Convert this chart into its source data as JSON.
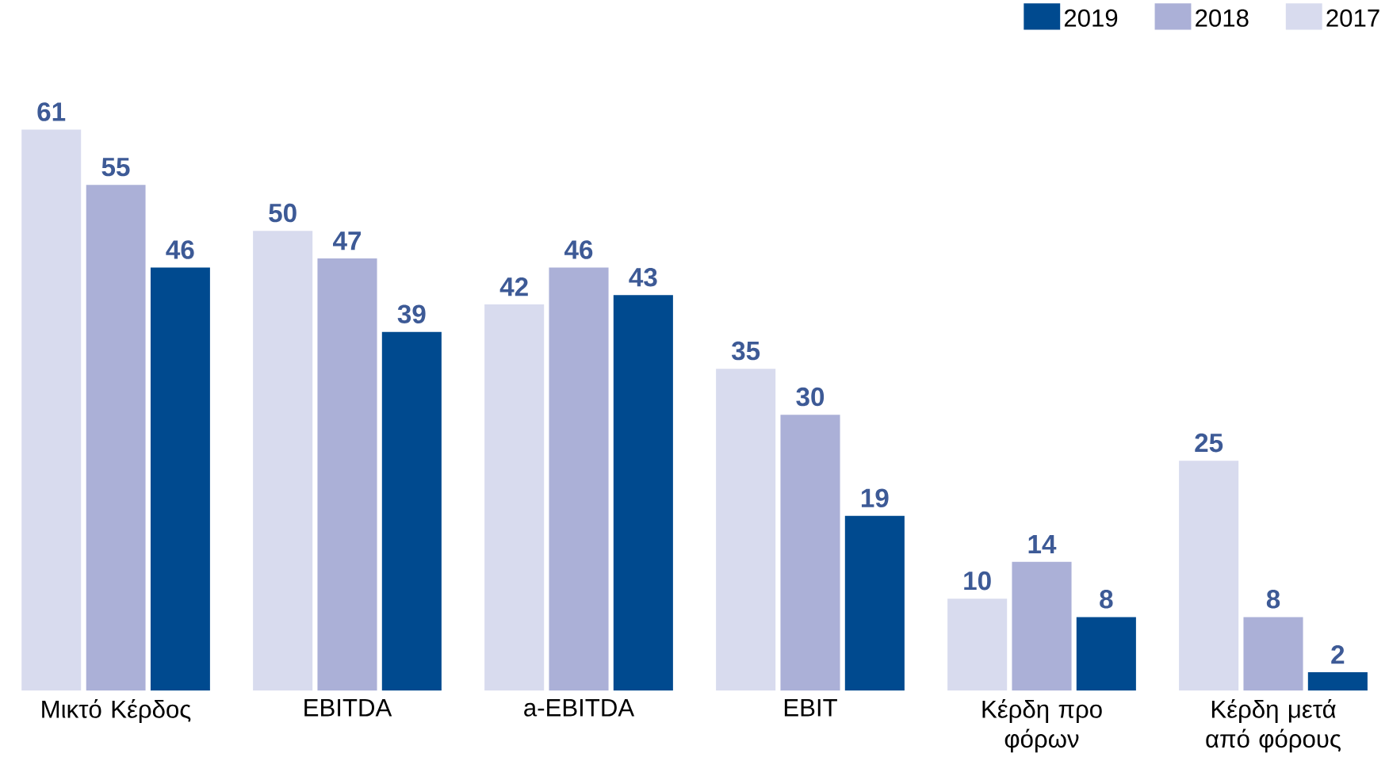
{
  "chart_data": {
    "type": "bar",
    "categories": [
      "Μικτό Κέρδος",
      "EBITDA",
      "a-EBITDA",
      "EBIT",
      "Κέρδη προ φόρων",
      "Κέρδη μετά από φόρους"
    ],
    "series": [
      {
        "name": "2017",
        "color": "#d8dbee",
        "values": [
          61,
          50,
          42,
          35,
          10,
          25
        ]
      },
      {
        "name": "2018",
        "color": "#abb0d7",
        "values": [
          55,
          47,
          46,
          30,
          14,
          8
        ]
      },
      {
        "name": "2019",
        "color": "#004a8f",
        "values": [
          46,
          39,
          43,
          19,
          8,
          2
        ]
      }
    ],
    "data_labels": true,
    "legend": "top right"
  }
}
